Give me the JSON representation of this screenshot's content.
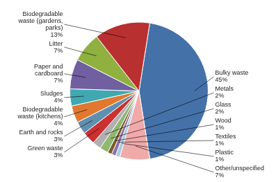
{
  "chart_data": {
    "type": "pie",
    "categories": [
      "Bulky waste",
      "Other/unspecified",
      "Plastic",
      "Textiles",
      "Wood",
      "Glass",
      "Metals",
      "Green waste",
      "Earth and rocks",
      "Biodegradable\nwaste (kitchens)",
      "Sludges",
      "Paper and\ncardboard",
      "Litter",
      "Biodegradable\nwaste (gardens,\nparks)"
    ],
    "values": [
      45,
      7,
      1,
      1,
      1,
      2,
      2,
      3,
      3,
      4,
      4,
      7,
      7,
      13
    ],
    "value_labels": [
      "45%",
      "7%",
      "1%",
      "1%",
      "1%",
      "2%",
      "2%",
      "3%",
      "3%",
      "4%",
      "4%",
      "7%",
      "7%",
      "13%"
    ],
    "colors": [
      "#4472A8",
      "#F0AAAA",
      "#A8CCE0",
      "#9070A8",
      "#7B5B2A",
      "#90B870",
      "#B0B0B0",
      "#CC3030",
      "#6090B0",
      "#E07830",
      "#40A8B0",
      "#7060A0",
      "#90B040",
      "#B83030"
    ],
    "data_labels": true
  }
}
